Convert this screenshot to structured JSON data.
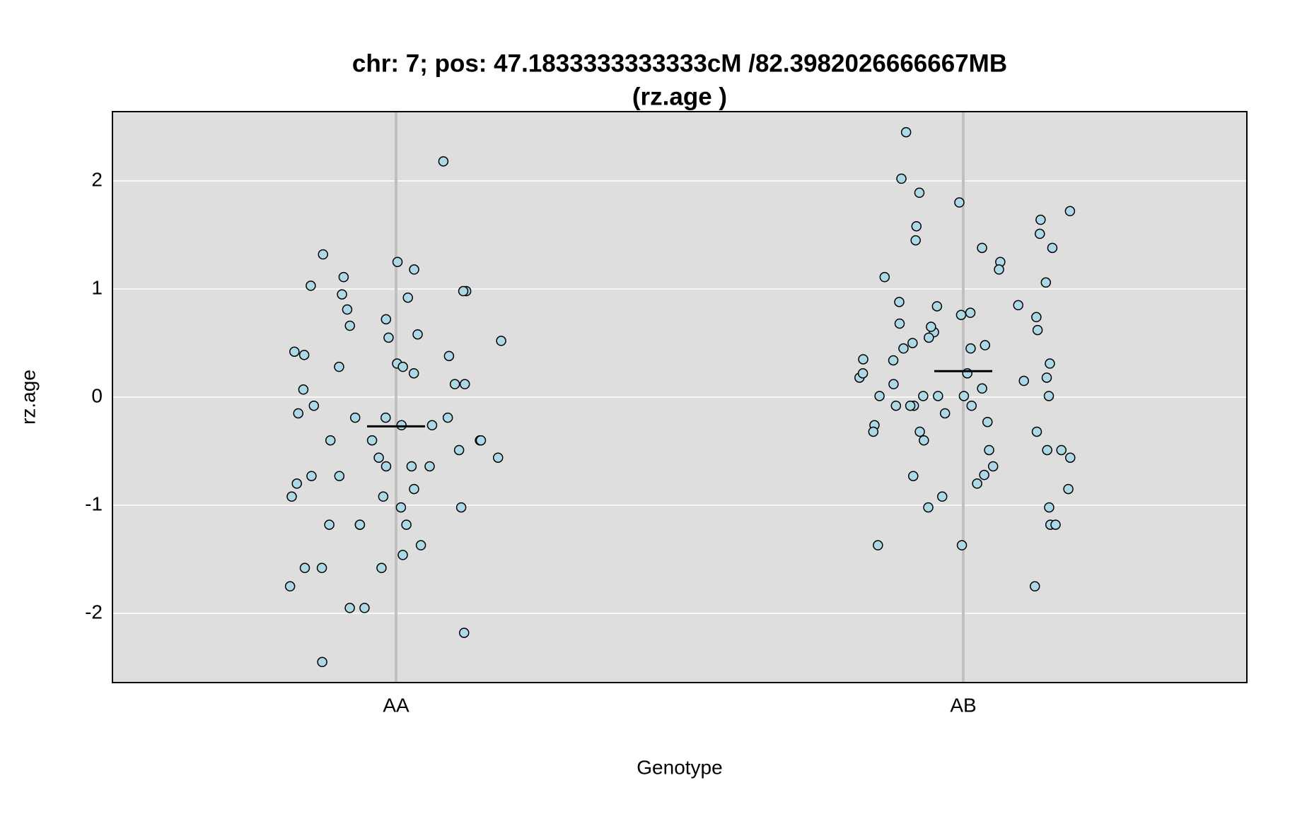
{
  "chart_data": {
    "type": "strip",
    "title": [
      "chr: 7; pos: 47.1833333333333cM /82.3982026666667MB",
      "(rz.age )"
    ],
    "x_label": "Genotype",
    "y_label": "rz.age",
    "categories": [
      "AA",
      "AB"
    ],
    "values": [
      [
        -0.19,
        0.39,
        -0.56,
        0.98,
        -1.58,
        -2.18,
        -0.73,
        -0.56,
        -1.95,
        0.12,
        -1.75,
        1.11,
        -0.64,
        0.31,
        1.03,
        -1.95,
        -1.37,
        -0.64,
        0.55,
        -0.08,
        -0.49,
        -0.4,
        -1.18,
        1.25,
        1.18,
        0.81,
        -0.85,
        -1.02,
        0.72,
        -0.19,
        0.52,
        0.38,
        0.22,
        -0.19,
        -1.58,
        0.98,
        -0.15,
        -2.45,
        0.28,
        2.18,
        -1.18,
        -0.26,
        0.07,
        -1.46,
        -0.73,
        -0.26,
        -0.92,
        0.28,
        -0.8,
        0.95,
        0.92,
        -0.64,
        -0.4,
        -1.18,
        0.42,
        -0.4,
        -0.92,
        -1.02,
        0.66,
        1.32,
        -0.4,
        0.12,
        0.58,
        -1.18,
        -1.58
      ],
      [
        -0.8,
        0.6,
        1.89,
        -0.08,
        0.01,
        0.35,
        -1.18,
        0.88,
        -0.15,
        -0.56,
        2.02,
        0.78,
        -0.49,
        -1.02,
        -0.73,
        0.45,
        0.74,
        0.01,
        1.51,
        1.45,
        0.15,
        0.84,
        0.85,
        -1.18,
        0.22,
        -0.23,
        0.65,
        0.62,
        0.48,
        -0.26,
        1.25,
        0.68,
        -0.08,
        1.18,
        0.18,
        0.01,
        -1.37,
        1.38,
        0.45,
        1.72,
        -0.92,
        0.18,
        0.34,
        0.55,
        1.58,
        -0.08,
        0.01,
        1.64,
        1.38,
        0.5,
        0.01,
        -0.49,
        1.06,
        2.45,
        -0.32,
        1.11,
        1.8,
        -0.72,
        0.76,
        -1.37,
        0.08,
        -0.64,
        -0.32,
        -0.4,
        -1.75,
        -0.49,
        -0.32,
        0.22,
        -1.02,
        0.12,
        -0.85,
        -0.08,
        0.31
      ]
    ],
    "means": [
      -0.27,
      0.24
    ],
    "color": "#add8e6",
    "ylim": [
      -2.64,
      2.64
    ],
    "yticks": [
      -2,
      -1,
      0,
      1,
      2
    ],
    "grid": true
  }
}
